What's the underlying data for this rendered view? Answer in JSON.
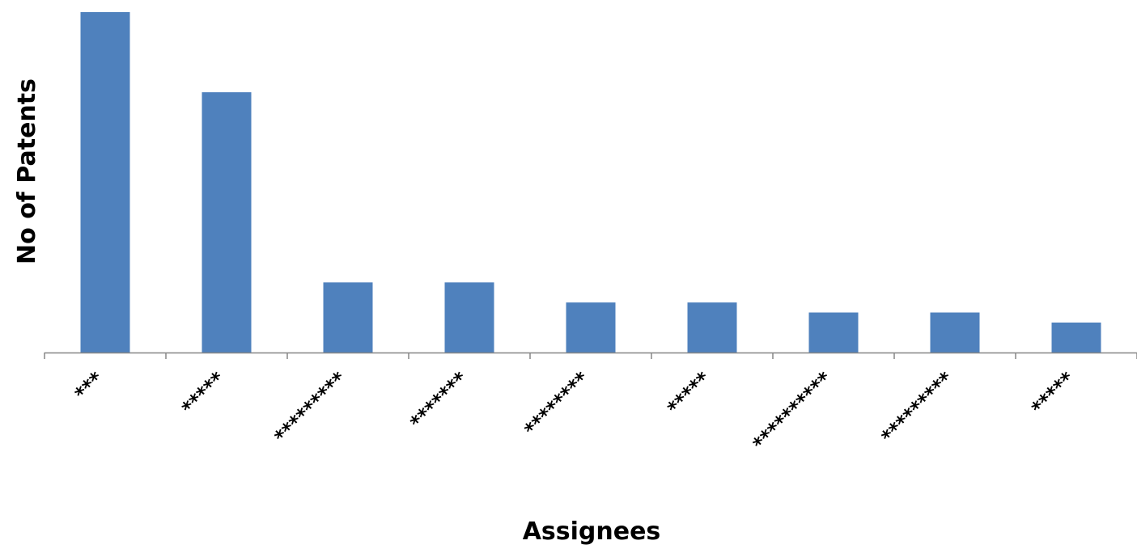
{
  "chart_data": {
    "type": "bar",
    "categories": [
      "***",
      "*****",
      "*********",
      "*******",
      "********",
      "*****",
      "**********",
      "*********",
      "*****"
    ],
    "values": [
      34,
      26,
      7,
      7,
      5,
      5,
      4,
      4,
      3
    ],
    "xlabel": "Assignees",
    "ylabel": "No of Patents",
    "ylim": [
      0,
      34
    ],
    "grid": false,
    "legend": "none",
    "bar_color": "#4F81BD",
    "axis_color": "#868686"
  }
}
